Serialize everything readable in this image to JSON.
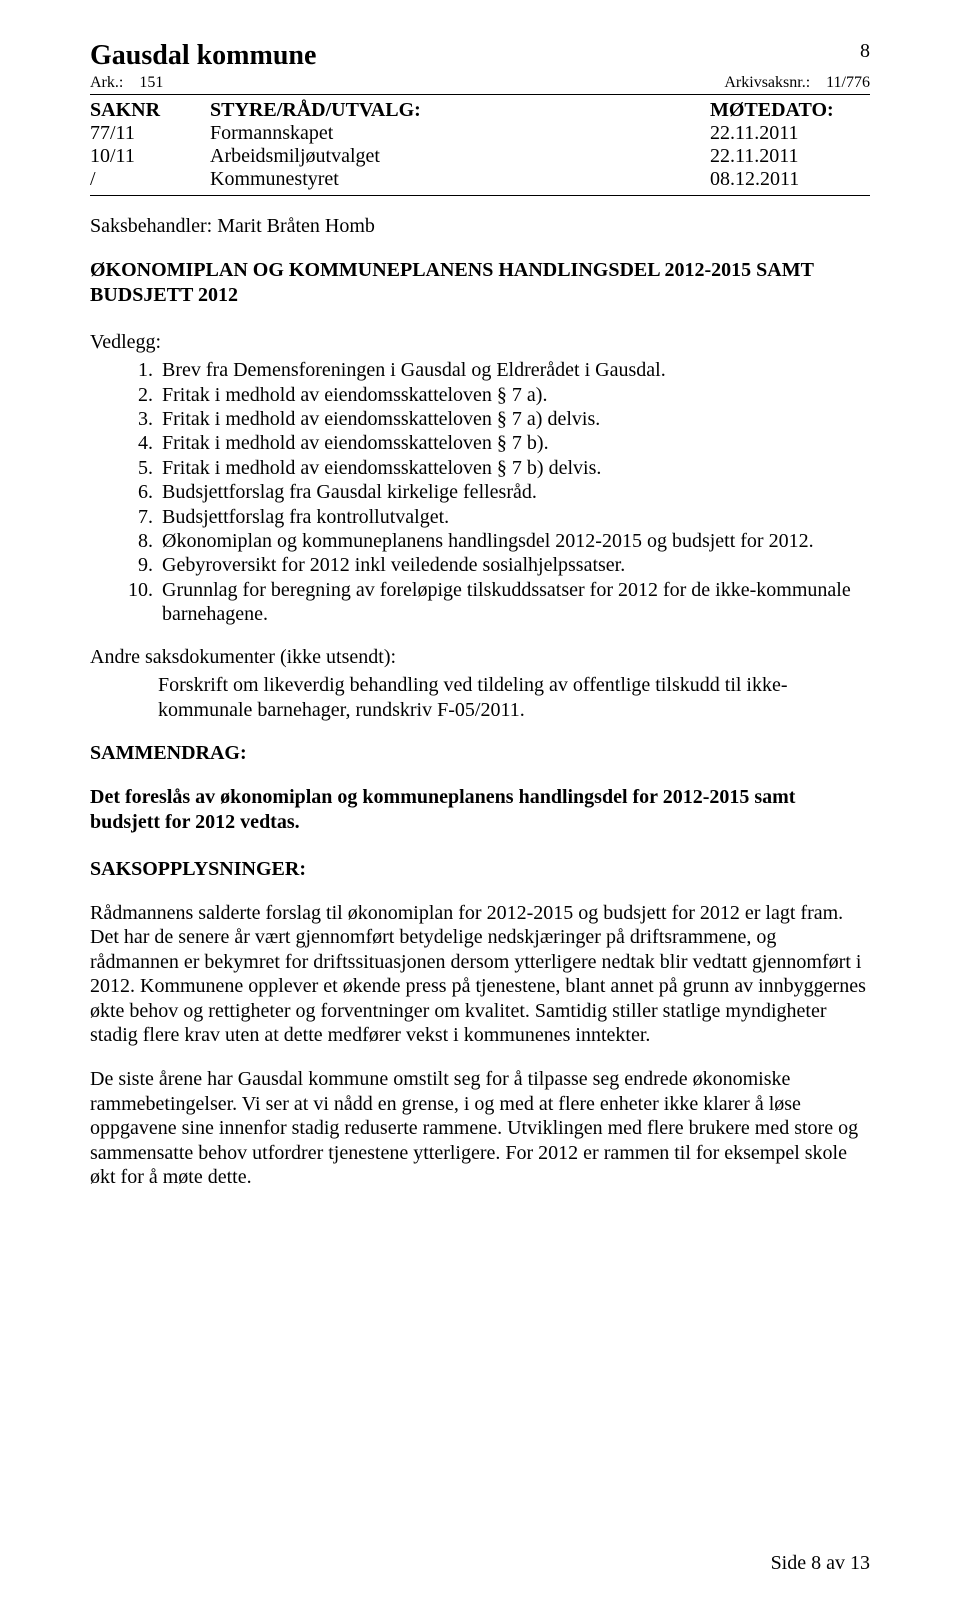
{
  "header": {
    "title": "Gausdal kommune",
    "page_number_top": "8",
    "ark_label": "Ark.:",
    "ark_value": "151",
    "arkiv_label": "Arkivsaksnr.:",
    "arkiv_value": "11/776"
  },
  "sak_table": {
    "headers": {
      "c1": "SAKNR",
      "c2": "STYRE/RÅD/UTVALG:",
      "c3": "MØTEDATO:"
    },
    "rows": [
      {
        "c1": "77/11",
        "c2": "Formannskapet",
        "c3": "22.11.2011"
      },
      {
        "c1": "10/11",
        "c2": "Arbeidsmiljøutvalget",
        "c3": "22.11.2011"
      },
      {
        "c1": "/",
        "c2": "Kommunestyret",
        "c3": "08.12.2011"
      }
    ]
  },
  "saksbehandler": "Saksbehandler: Marit Bråten Homb",
  "main_title": "ØKONOMIPLAN OG KOMMUNEPLANENS HANDLINGSDEL 2012-2015 SAMT BUDSJETT 2012",
  "vedlegg": {
    "label": "Vedlegg:",
    "items": [
      "Brev fra Demensforeningen i Gausdal og Eldrerådet i Gausdal.",
      "Fritak i medhold av eiendomsskatteloven § 7 a).",
      "Fritak i medhold av eiendomsskatteloven § 7 a) delvis.",
      "Fritak i medhold av eiendomsskatteloven § 7 b).",
      "Fritak i medhold av eiendomsskatteloven § 7 b) delvis.",
      "Budsjettforslag fra Gausdal kirkelige fellesråd.",
      "Budsjettforslag fra kontrollutvalget.",
      "Økonomiplan og kommuneplanens handlingsdel 2012-2015 og budsjett for 2012.",
      "Gebyroversikt for 2012 inkl veiledende sosialhjelpssatser.",
      "Grunnlag for beregning av foreløpige tilskuddssatser for 2012 for de ikke-kommunale barnehagene."
    ]
  },
  "andre_saksdok": {
    "label": "Andre saksdokumenter (ikke utsendt):",
    "text": "Forskrift om likeverdig behandling ved tildeling av offentlige tilskudd til ikke-kommunale barnehager, rundskriv F-05/2011."
  },
  "sammendrag": {
    "label": "SAMMENDRAG:",
    "text": "Det foreslås av økonomiplan og kommuneplanens handlingsdel for 2012-2015 samt budsjett for 2012 vedtas."
  },
  "saksopplysninger": {
    "label": "SAKSOPPLYSNINGER:",
    "p1": "Rådmannens salderte forslag til økonomiplan for 2012-2015 og budsjett for 2012 er lagt fram. Det har de senere år vært gjennomført betydelige nedskjæringer på driftsrammene, og rådmannen er bekymret for driftssituasjonen dersom ytterligere nedtak blir vedtatt gjennomført i 2012. Kommunene opplever et økende press på tjenestene, blant annet på grunn av innbyggernes økte behov og rettigheter og forventninger om kvalitet. Samtidig stiller statlige myndigheter stadig flere krav uten at dette medfører vekst i kommunenes inntekter.",
    "p2": "De siste årene har Gausdal kommune omstilt seg for å tilpasse seg endrede økonomiske rammebetingelser. Vi ser at vi nådd en grense, i og med at flere enheter ikke klarer å løse oppgavene sine innenfor stadig reduserte rammene. Utviklingen med flere brukere med store og sammensatte behov utfordrer tjenestene ytterligere. For 2012 er rammen til for eksempel skole økt for å møte dette."
  },
  "footer": "Side 8 av 13"
}
